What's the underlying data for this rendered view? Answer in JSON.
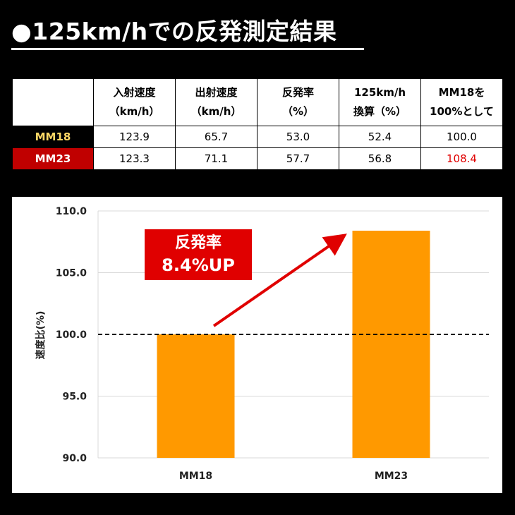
{
  "title": "●125km/hでの反発測定結果",
  "table": {
    "headers": [
      {
        "line1": "",
        "line2": ""
      },
      {
        "line1": "入射速度",
        "line2": "（km/h）"
      },
      {
        "line1": "出射速度",
        "line2": "（km/h）"
      },
      {
        "line1": "反発率",
        "line2": "（%）"
      },
      {
        "line1": "125km/h",
        "line2": "換算（%）"
      },
      {
        "line1": "MM18を",
        "line2": "100%として"
      }
    ],
    "rows": [
      {
        "label": "MM18",
        "cells": [
          "123.9",
          "65.7",
          "53.0",
          "52.4",
          "100.0"
        ]
      },
      {
        "label": "MM23",
        "cells": [
          "123.3",
          "71.1",
          "57.7",
          "56.8",
          "108.4"
        ]
      }
    ]
  },
  "callout": {
    "line1": "反発率",
    "line2": "8.4%UP"
  },
  "colors": {
    "bar": "#ff9900",
    "arrow": "#e00000",
    "callout_bg": "#e00000",
    "mm18_label": "#ffd966",
    "mm23_bg": "#c00000",
    "highlight_value": "#e00000"
  },
  "chart_data": {
    "type": "bar",
    "categories": [
      "MM18",
      "MM23"
    ],
    "values": [
      100.0,
      108.4
    ],
    "title": "",
    "xlabel": "",
    "ylabel": "速度比(%)",
    "ylim": [
      90.0,
      110.0
    ],
    "yticks": [
      "110.0",
      "105.0",
      "100.0",
      "95.0",
      "90.0"
    ],
    "reference_line": 100.0,
    "grid": true
  }
}
